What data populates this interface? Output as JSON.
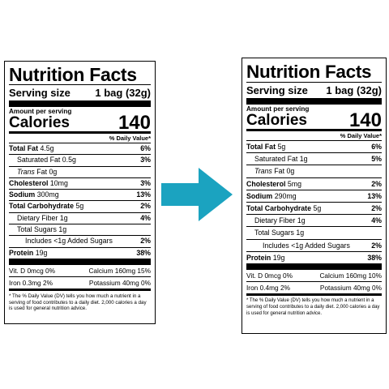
{
  "left": {
    "title": "Nutrition Facts",
    "serving_label": "Serving size",
    "serving_value": "1 bag (32g)",
    "amount_per_serving": "Amount per serving",
    "calories_label": "Calories",
    "calories_value": "140",
    "dv_header": "% Daily Value*",
    "nutrients": [
      {
        "name": "Total Fat",
        "amount": "4.5g",
        "dv": "6%"
      },
      {
        "name": "Saturated Fat",
        "amount": "0.5g",
        "dv": "3%"
      },
      {
        "name": "Trans",
        "amount": "Fat 0g",
        "dv": ""
      },
      {
        "name": "Cholesterol",
        "amount": "10mg",
        "dv": "3%"
      },
      {
        "name": "Sodium",
        "amount": "300mg",
        "dv": "13%"
      },
      {
        "name": "Total Carbohydrate",
        "amount": "5g",
        "dv": "2%"
      },
      {
        "name": "Dietary Fiber",
        "amount": "1g",
        "dv": "4%"
      },
      {
        "name": "Total Sugars",
        "amount": "1g",
        "dv": ""
      },
      {
        "name": "Includes <1g Added Sugars",
        "amount": "",
        "dv": "2%"
      },
      {
        "name": "Protein",
        "amount": "19g",
        "dv": "38%"
      }
    ],
    "vitamins": [
      {
        "a": "Vit. D 0mcg 0%",
        "b": "Calcium 160mg 15%"
      },
      {
        "a": "Iron 0.3mg 2%",
        "b": "Potassium 40mg 0%"
      }
    ],
    "footnote": "* The % Daily Value (DV) tells you how much a nutrient in a serving of food contributes to a daily diet. 2,000 calories a day is used for general nutrition advice."
  },
  "right": {
    "title": "Nutrition Facts",
    "serving_label": "Serving size",
    "serving_value": "1 bag (32g)",
    "amount_per_serving": "Amount per serving",
    "calories_label": "Calories",
    "calories_value": "140",
    "dv_header": "% Daily Value*",
    "nutrients": [
      {
        "name": "Total Fat",
        "amount": "5g",
        "dv": "6%"
      },
      {
        "name": "Saturated Fat",
        "amount": "1g",
        "dv": "5%"
      },
      {
        "name": "Trans",
        "amount": "Fat 0g",
        "dv": ""
      },
      {
        "name": "Cholesterol",
        "amount": "5mg",
        "dv": "2%"
      },
      {
        "name": "Sodium",
        "amount": "290mg",
        "dv": "13%"
      },
      {
        "name": "Total Carbohydrate",
        "amount": "5g",
        "dv": "2%"
      },
      {
        "name": "Dietary Fiber",
        "amount": "1g",
        "dv": "4%"
      },
      {
        "name": "Total Sugars",
        "amount": "1g",
        "dv": ""
      },
      {
        "name": "Includes <1g Added Sugars",
        "amount": "",
        "dv": "2%"
      },
      {
        "name": "Protein",
        "amount": "19g",
        "dv": "38%"
      }
    ],
    "vitamins": [
      {
        "a": "Vit. D 0mcg 0%",
        "b": "Calcium 160mg 10%"
      },
      {
        "a": "Iron 0.4mg 2%",
        "b": "Potassium 40mg 0%"
      }
    ],
    "footnote": "* The % Daily Value (DV) tells you how much a nutrient in a serving of food contributes to a daily diet. 2,000 calories a day is used for general nutrition advice."
  },
  "arrow": {
    "icon": "arrow-right-icon",
    "color": "#1ba3c0"
  },
  "colors": {
    "text": "#000000",
    "background": "#ffffff"
  }
}
